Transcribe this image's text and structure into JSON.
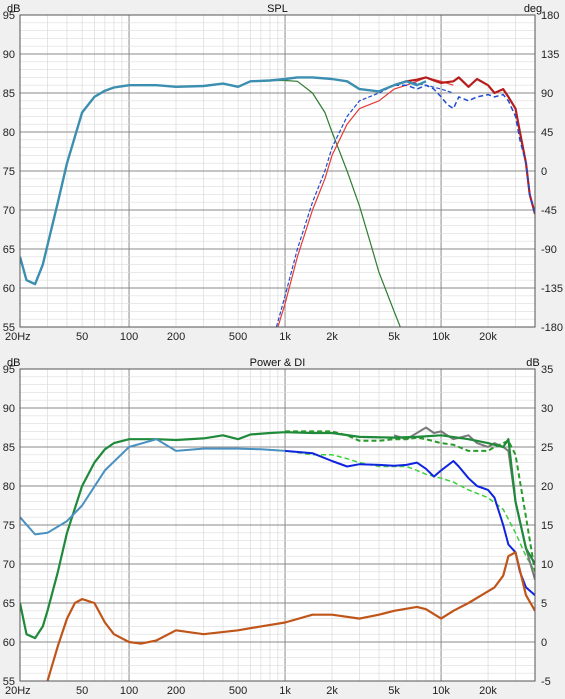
{
  "chart_data": [
    {
      "type": "line",
      "title": "SPL",
      "xscale": "log",
      "xlim": [
        20,
        40000
      ],
      "xticks": [
        {
          "v": 20,
          "l": "20Hz"
        },
        {
          "v": 50,
          "l": "50"
        },
        {
          "v": 100,
          "l": "100"
        },
        {
          "v": 200,
          "l": "200"
        },
        {
          "v": 500,
          "l": "500"
        },
        {
          "v": 1000,
          "l": "1k"
        },
        {
          "v": 2000,
          "l": "2k"
        },
        {
          "v": 5000,
          "l": "5k"
        },
        {
          "v": 10000,
          "l": "10k"
        },
        {
          "v": 20000,
          "l": "20k"
        }
      ],
      "ylabel": "dB",
      "ylim": [
        55,
        95
      ],
      "yticks": [
        55,
        60,
        65,
        70,
        75,
        80,
        85,
        90,
        95
      ],
      "y2label": "deg",
      "y2lim": [
        -180,
        180
      ],
      "y2ticks": [
        -180,
        -135,
        -90,
        -45,
        0,
        45,
        90,
        135,
        180
      ],
      "grid": true,
      "series": [
        {
          "color": "#2e7d32",
          "width": 1.2,
          "dash": "",
          "x": [
            20,
            22,
            25,
            28,
            30,
            35,
            40,
            50,
            60,
            70,
            80,
            100,
            150,
            200,
            300,
            400,
            500,
            600,
            800,
            1000,
            1200,
            1500,
            1800,
            2000,
            2500,
            3000,
            3500,
            4000,
            5000,
            6000
          ],
          "y": [
            64,
            61,
            60.5,
            63,
            65.5,
            71,
            76,
            82.5,
            84.5,
            85.3,
            85.7,
            86,
            86,
            85.8,
            85.9,
            86.2,
            85.8,
            86.5,
            86.6,
            86.6,
            86.5,
            85,
            82.5,
            80,
            75,
            70.5,
            66,
            62,
            57,
            53
          ]
        },
        {
          "color": "#e53935",
          "width": 1.2,
          "dash": "",
          "x": [
            900,
            1000,
            1200,
            1500,
            1800,
            2000,
            2500,
            3000,
            4000,
            5000,
            6000,
            7000,
            8000,
            10000,
            12000
          ],
          "y": [
            55,
            58,
            64,
            70,
            74,
            77,
            81,
            83,
            84,
            85.5,
            86,
            86.5,
            87,
            86.5,
            86
          ]
        },
        {
          "color": "#1e4bd0",
          "width": 1.2,
          "dash": "4,2",
          "x": [
            880,
            1000,
            1200,
            1500,
            1800,
            2000,
            2500,
            3000,
            4000,
            5000,
            6000,
            7000,
            8000,
            10000,
            12000
          ],
          "y": [
            55,
            59,
            65,
            71,
            75,
            78,
            82,
            84,
            85,
            86,
            86.5,
            86.2,
            86,
            85.5,
            85
          ]
        },
        {
          "color": "#b71c1c",
          "width": 2.2,
          "dash": "",
          "x": [
            5000,
            6000,
            7000,
            8000,
            9000,
            10000,
            12000,
            13000,
            15000,
            17000,
            20000,
            22000,
            25000,
            27000,
            30000,
            32000,
            35000,
            37000,
            40000
          ],
          "y": [
            86,
            86.5,
            86.7,
            87,
            86.6,
            86.3,
            86.5,
            87,
            85.8,
            86.8,
            86,
            85,
            85.5,
            84.5,
            83,
            80,
            76,
            72,
            69.5
          ]
        },
        {
          "color": "#1e4bd0",
          "width": 1.5,
          "dash": "5,3",
          "x": [
            5000,
            6000,
            7000,
            8000,
            9000,
            10000,
            11000,
            12000,
            13000,
            15000,
            17000,
            20000,
            22000,
            25000,
            27000,
            30000,
            32000,
            35000,
            37000,
            40000
          ],
          "y": [
            86,
            86,
            85.5,
            86,
            85.5,
            84.5,
            83.5,
            83,
            84.5,
            84,
            84.5,
            84.8,
            84.5,
            84.8,
            84,
            82,
            79,
            76,
            72,
            69.5
          ]
        },
        {
          "color": "#3c8fb0",
          "width": 2.4,
          "dash": "",
          "x": [
            20,
            22,
            25,
            28,
            30,
            35,
            40,
            50,
            60,
            70,
            80,
            100,
            150,
            200,
            300,
            400,
            500,
            600,
            800,
            1000,
            1200,
            1500,
            2000,
            2500,
            3000,
            4000,
            5000,
            6000,
            7000,
            8000
          ],
          "y": [
            64,
            61,
            60.5,
            63,
            65.5,
            71,
            76,
            82.5,
            84.5,
            85.3,
            85.7,
            86,
            86,
            85.8,
            85.9,
            86.2,
            85.8,
            86.5,
            86.6,
            86.8,
            87,
            87,
            86.8,
            86.5,
            85.5,
            85.2,
            86,
            86.5,
            86,
            86.5
          ]
        }
      ]
    },
    {
      "type": "line",
      "title": "Power & DI",
      "xscale": "log",
      "xlim": [
        20,
        40000
      ],
      "xticks": [
        {
          "v": 20,
          "l": "20Hz"
        },
        {
          "v": 50,
          "l": "50"
        },
        {
          "v": 100,
          "l": "100"
        },
        {
          "v": 200,
          "l": "200"
        },
        {
          "v": 500,
          "l": "500"
        },
        {
          "v": 1000,
          "l": "1k"
        },
        {
          "v": 2000,
          "l": "2k"
        },
        {
          "v": 5000,
          "l": "5k"
        },
        {
          "v": 10000,
          "l": "10k"
        },
        {
          "v": 20000,
          "l": "20k"
        }
      ],
      "ylabel": "dB",
      "ylim": [
        55,
        95
      ],
      "yticks": [
        55,
        60,
        65,
        70,
        75,
        80,
        85,
        90,
        95
      ],
      "y2label": "dB",
      "y2lim": [
        -5,
        35
      ],
      "y2ticks": [
        -5,
        0,
        5,
        10,
        15,
        20,
        25,
        30,
        35
      ],
      "grid": true,
      "series": [
        {
          "color": "#3ecf3e",
          "width": 1.5,
          "dash": "5,3",
          "x": [
            20,
            25,
            30,
            40,
            50,
            70,
            100,
            150,
            200,
            300,
            500,
            700,
            1000,
            1500,
            2000,
            2500,
            3000,
            4000,
            5000,
            6000,
            7000,
            8000,
            10000,
            12000,
            15000,
            20000,
            25000,
            30000,
            35000,
            40000
          ],
          "y": [
            76,
            73.8,
            74,
            75.5,
            77.5,
            82,
            85,
            86,
            84.5,
            84.8,
            84.8,
            84.7,
            84.5,
            84,
            84,
            83.5,
            83,
            82.5,
            82.5,
            82.5,
            82,
            81.5,
            81,
            80.5,
            79.5,
            78.5,
            77,
            74,
            71,
            69
          ]
        },
        {
          "color": "#7a7a7a",
          "width": 2,
          "dash": "",
          "x": [
            5000,
            6000,
            7000,
            8000,
            9000,
            10000,
            12000,
            15000,
            17000,
            20000,
            22000,
            25000,
            27000,
            30000,
            35000,
            40000
          ],
          "y": [
            86.5,
            86,
            86.8,
            87.5,
            86.8,
            87,
            86,
            86.5,
            85.5,
            85,
            85.5,
            85,
            84.5,
            78,
            72,
            68
          ]
        },
        {
          "color": "#2a9a2a",
          "width": 2,
          "dash": "5,3",
          "x": [
            1000,
            1500,
            2000,
            2500,
            3000,
            4000,
            5000,
            6000,
            7000,
            8000,
            10000,
            12000,
            15000,
            20000,
            22000,
            25000,
            27000,
            30000,
            35000,
            40000
          ],
          "y": [
            87,
            87,
            87,
            86.5,
            85.8,
            85.8,
            86,
            86,
            86.2,
            86,
            85.5,
            85.3,
            84.5,
            84.5,
            85,
            85.5,
            85.8,
            84,
            76,
            69
          ]
        },
        {
          "color": "#1f8a3a",
          "width": 2.2,
          "dash": "",
          "x": [
            20,
            22,
            25,
            28,
            30,
            35,
            40,
            50,
            60,
            70,
            80,
            100,
            150,
            200,
            300,
            400,
            500,
            600,
            800,
            1000,
            1500,
            2000,
            3000,
            5000,
            7000,
            10000,
            15000,
            20000,
            25000,
            27000,
            30000,
            35000,
            40000
          ],
          "y": [
            65,
            61,
            60.5,
            62,
            64,
            69,
            74,
            80,
            83,
            84.7,
            85.5,
            86,
            86,
            85.9,
            86.1,
            86.5,
            86,
            86.6,
            86.8,
            86.9,
            86.8,
            86.8,
            86.3,
            86.2,
            86.3,
            86.5,
            86,
            85.5,
            85,
            86,
            78,
            72,
            70
          ]
        },
        {
          "color": "#1024e0",
          "width": 2,
          "dash": "",
          "x": [
            1000,
            1500,
            2000,
            2500,
            3000,
            4000,
            5000,
            6000,
            7000,
            8000,
            9000,
            10000,
            12000,
            13000,
            15000,
            17000,
            20000,
            22000,
            25000,
            27000,
            30000,
            32000,
            35000,
            40000
          ],
          "y": [
            84.5,
            84.2,
            83.2,
            82.5,
            82.8,
            82.7,
            82.6,
            82.7,
            83,
            82.2,
            81.2,
            82,
            83.2,
            82.5,
            81,
            80,
            79.5,
            78.5,
            75,
            72.5,
            71.5,
            69,
            67,
            66
          ]
        },
        {
          "color": "#4a90c0",
          "width": 2,
          "dash": "",
          "x": [
            20,
            25,
            30,
            40,
            50,
            70,
            100,
            150,
            200,
            300,
            500,
            700,
            1000
          ],
          "y": [
            76,
            73.8,
            74,
            75.5,
            77.5,
            82,
            85,
            86,
            84.5,
            84.8,
            84.8,
            84.7,
            84.5
          ]
        },
        {
          "color": "#c0551a",
          "width": 2.2,
          "dash": "",
          "x": [
            30,
            35,
            40,
            45,
            50,
            60,
            70,
            80,
            100,
            120,
            150,
            200,
            300,
            500,
            700,
            1000,
            1500,
            2000,
            3000,
            4000,
            5000,
            7000,
            8000,
            10000,
            12000,
            15000,
            20000,
            22000,
            25000,
            27000,
            30000,
            35000,
            40000
          ],
          "y": [
            55,
            59.5,
            63,
            65,
            65.5,
            65,
            62.5,
            61,
            60,
            59.8,
            60.2,
            61.5,
            61,
            61.5,
            62,
            62.5,
            63.5,
            63.5,
            63,
            63.5,
            64,
            64.5,
            64.2,
            63,
            64,
            65,
            66.5,
            67,
            68.5,
            71,
            71.5,
            66,
            64
          ]
        }
      ]
    }
  ]
}
